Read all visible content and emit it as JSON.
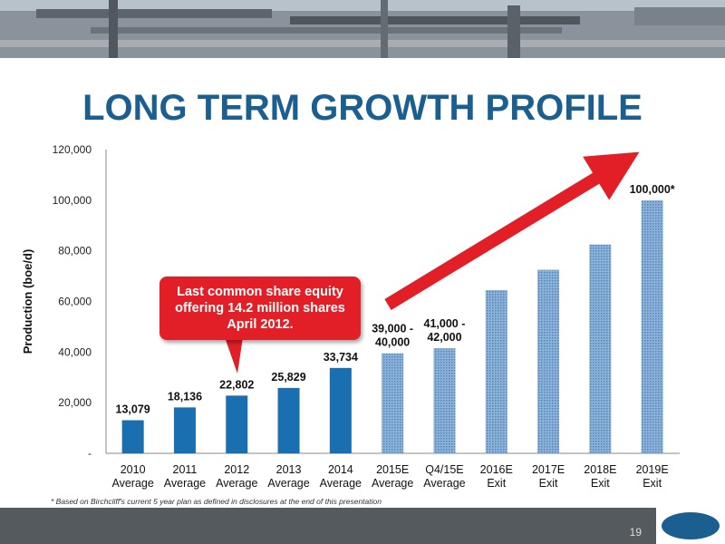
{
  "slide": {
    "title": "LONG TERM GROWTH PROFILE",
    "footnote": "* Based on Birchcliff's current 5 year plan as defined in disclosures at the end of this presentation",
    "page_number": "19",
    "logo": "Birchcliff Energy"
  },
  "callout": {
    "text": "Last common share equity offering 14.2 million shares April 2012."
  },
  "colors": {
    "title": "#1a5f8f",
    "actual_bar": "#1a6fb0",
    "forecast_bar": "#8fb3d6",
    "arrow": "#e21f26",
    "callout": "#e21f26"
  },
  "chart_data": {
    "type": "bar",
    "ylabel": "Production (boe/d)",
    "ylim": [
      0,
      120000
    ],
    "yticks": [
      "-",
      "20,000",
      "40,000",
      "60,000",
      "80,000",
      "100,000",
      "120,000"
    ],
    "grid": false,
    "categories": [
      [
        "2010",
        "Average"
      ],
      [
        "2011",
        "Average"
      ],
      [
        "2012",
        "Average"
      ],
      [
        "2013",
        "Average"
      ],
      [
        "2014",
        "Average"
      ],
      [
        "2015E",
        "Average"
      ],
      [
        "Q4/15E",
        "Average"
      ],
      [
        "2016E",
        "Exit"
      ],
      [
        "2017E",
        "Exit"
      ],
      [
        "2018E",
        "Exit"
      ],
      [
        "2019E",
        "Exit"
      ]
    ],
    "values": [
      13079,
      18136,
      22802,
      25829,
      33734,
      39500,
      41500,
      64500,
      72500,
      82500,
      100000
    ],
    "forecast": [
      false,
      false,
      false,
      false,
      false,
      true,
      true,
      true,
      true,
      true,
      true
    ],
    "data_labels": [
      [
        "13,079"
      ],
      [
        "18,136"
      ],
      [
        "22,802"
      ],
      [
        "25,829"
      ],
      [
        "33,734"
      ],
      [
        "39,000 -",
        "40,000"
      ],
      [
        "41,000 -",
        "42,000"
      ],
      [],
      [],
      [],
      [
        "100,000*"
      ]
    ]
  }
}
